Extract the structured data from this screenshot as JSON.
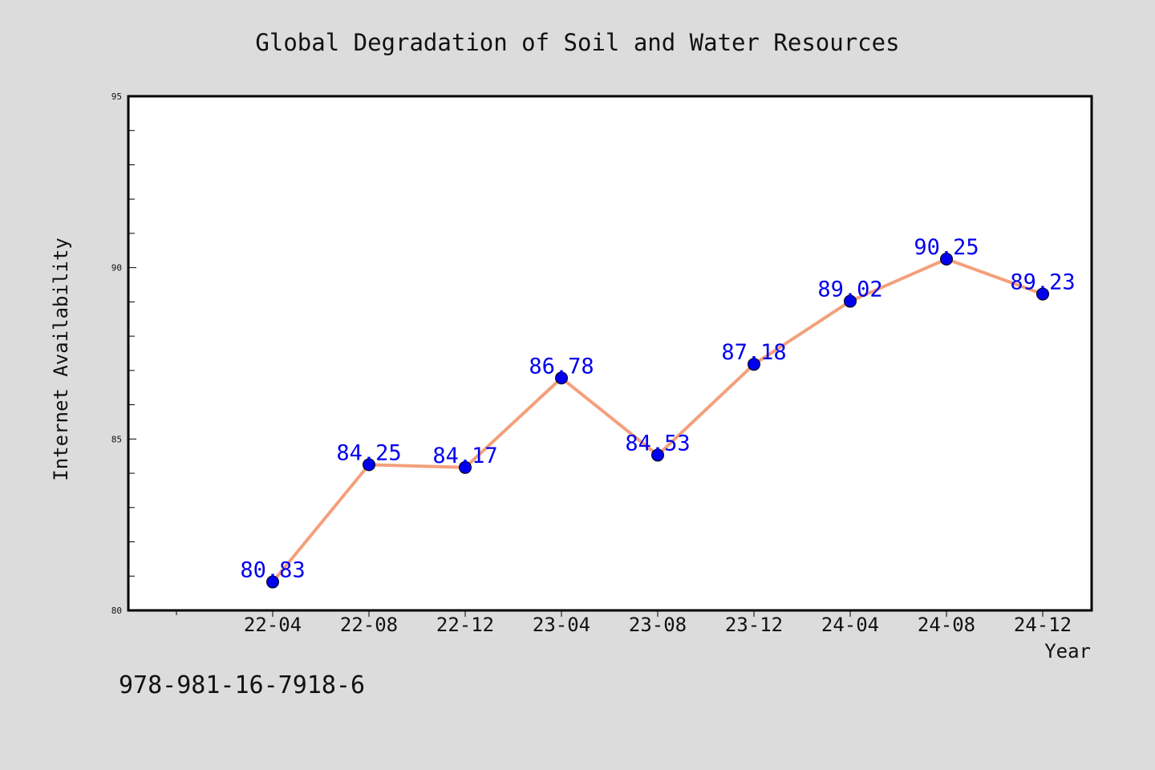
{
  "chart_data": {
    "type": "line",
    "title": "Global Degradation of Soil and Water Resources",
    "xlabel": "Year",
    "ylabel": "Internet Availability",
    "categories": [
      "22-04",
      "22-08",
      "22-12",
      "23-04",
      "23-08",
      "23-12",
      "24-04",
      "24-08",
      "24-12"
    ],
    "series": [
      {
        "values": [
          80.83,
          84.25,
          84.17,
          86.78,
          84.53,
          87.18,
          89.02,
          90.25,
          89.23
        ]
      }
    ],
    "data_labels": [
      "80.83",
      "84.25",
      "84.17",
      "86.78",
      "84.53",
      "87.18",
      "89.02",
      "90.25",
      "89.23"
    ],
    "ylim": [
      80,
      95
    ],
    "yticks": [
      80,
      85,
      90,
      95
    ],
    "ytick_labels": [
      "80",
      "85",
      "90",
      "95"
    ],
    "grid": false,
    "legend": "none",
    "line_color": "#f4a07c",
    "marker_color": "#0000ee",
    "label_color": "#0000ee"
  },
  "footer": {
    "isbn": "978-981-16-7918-6"
  }
}
